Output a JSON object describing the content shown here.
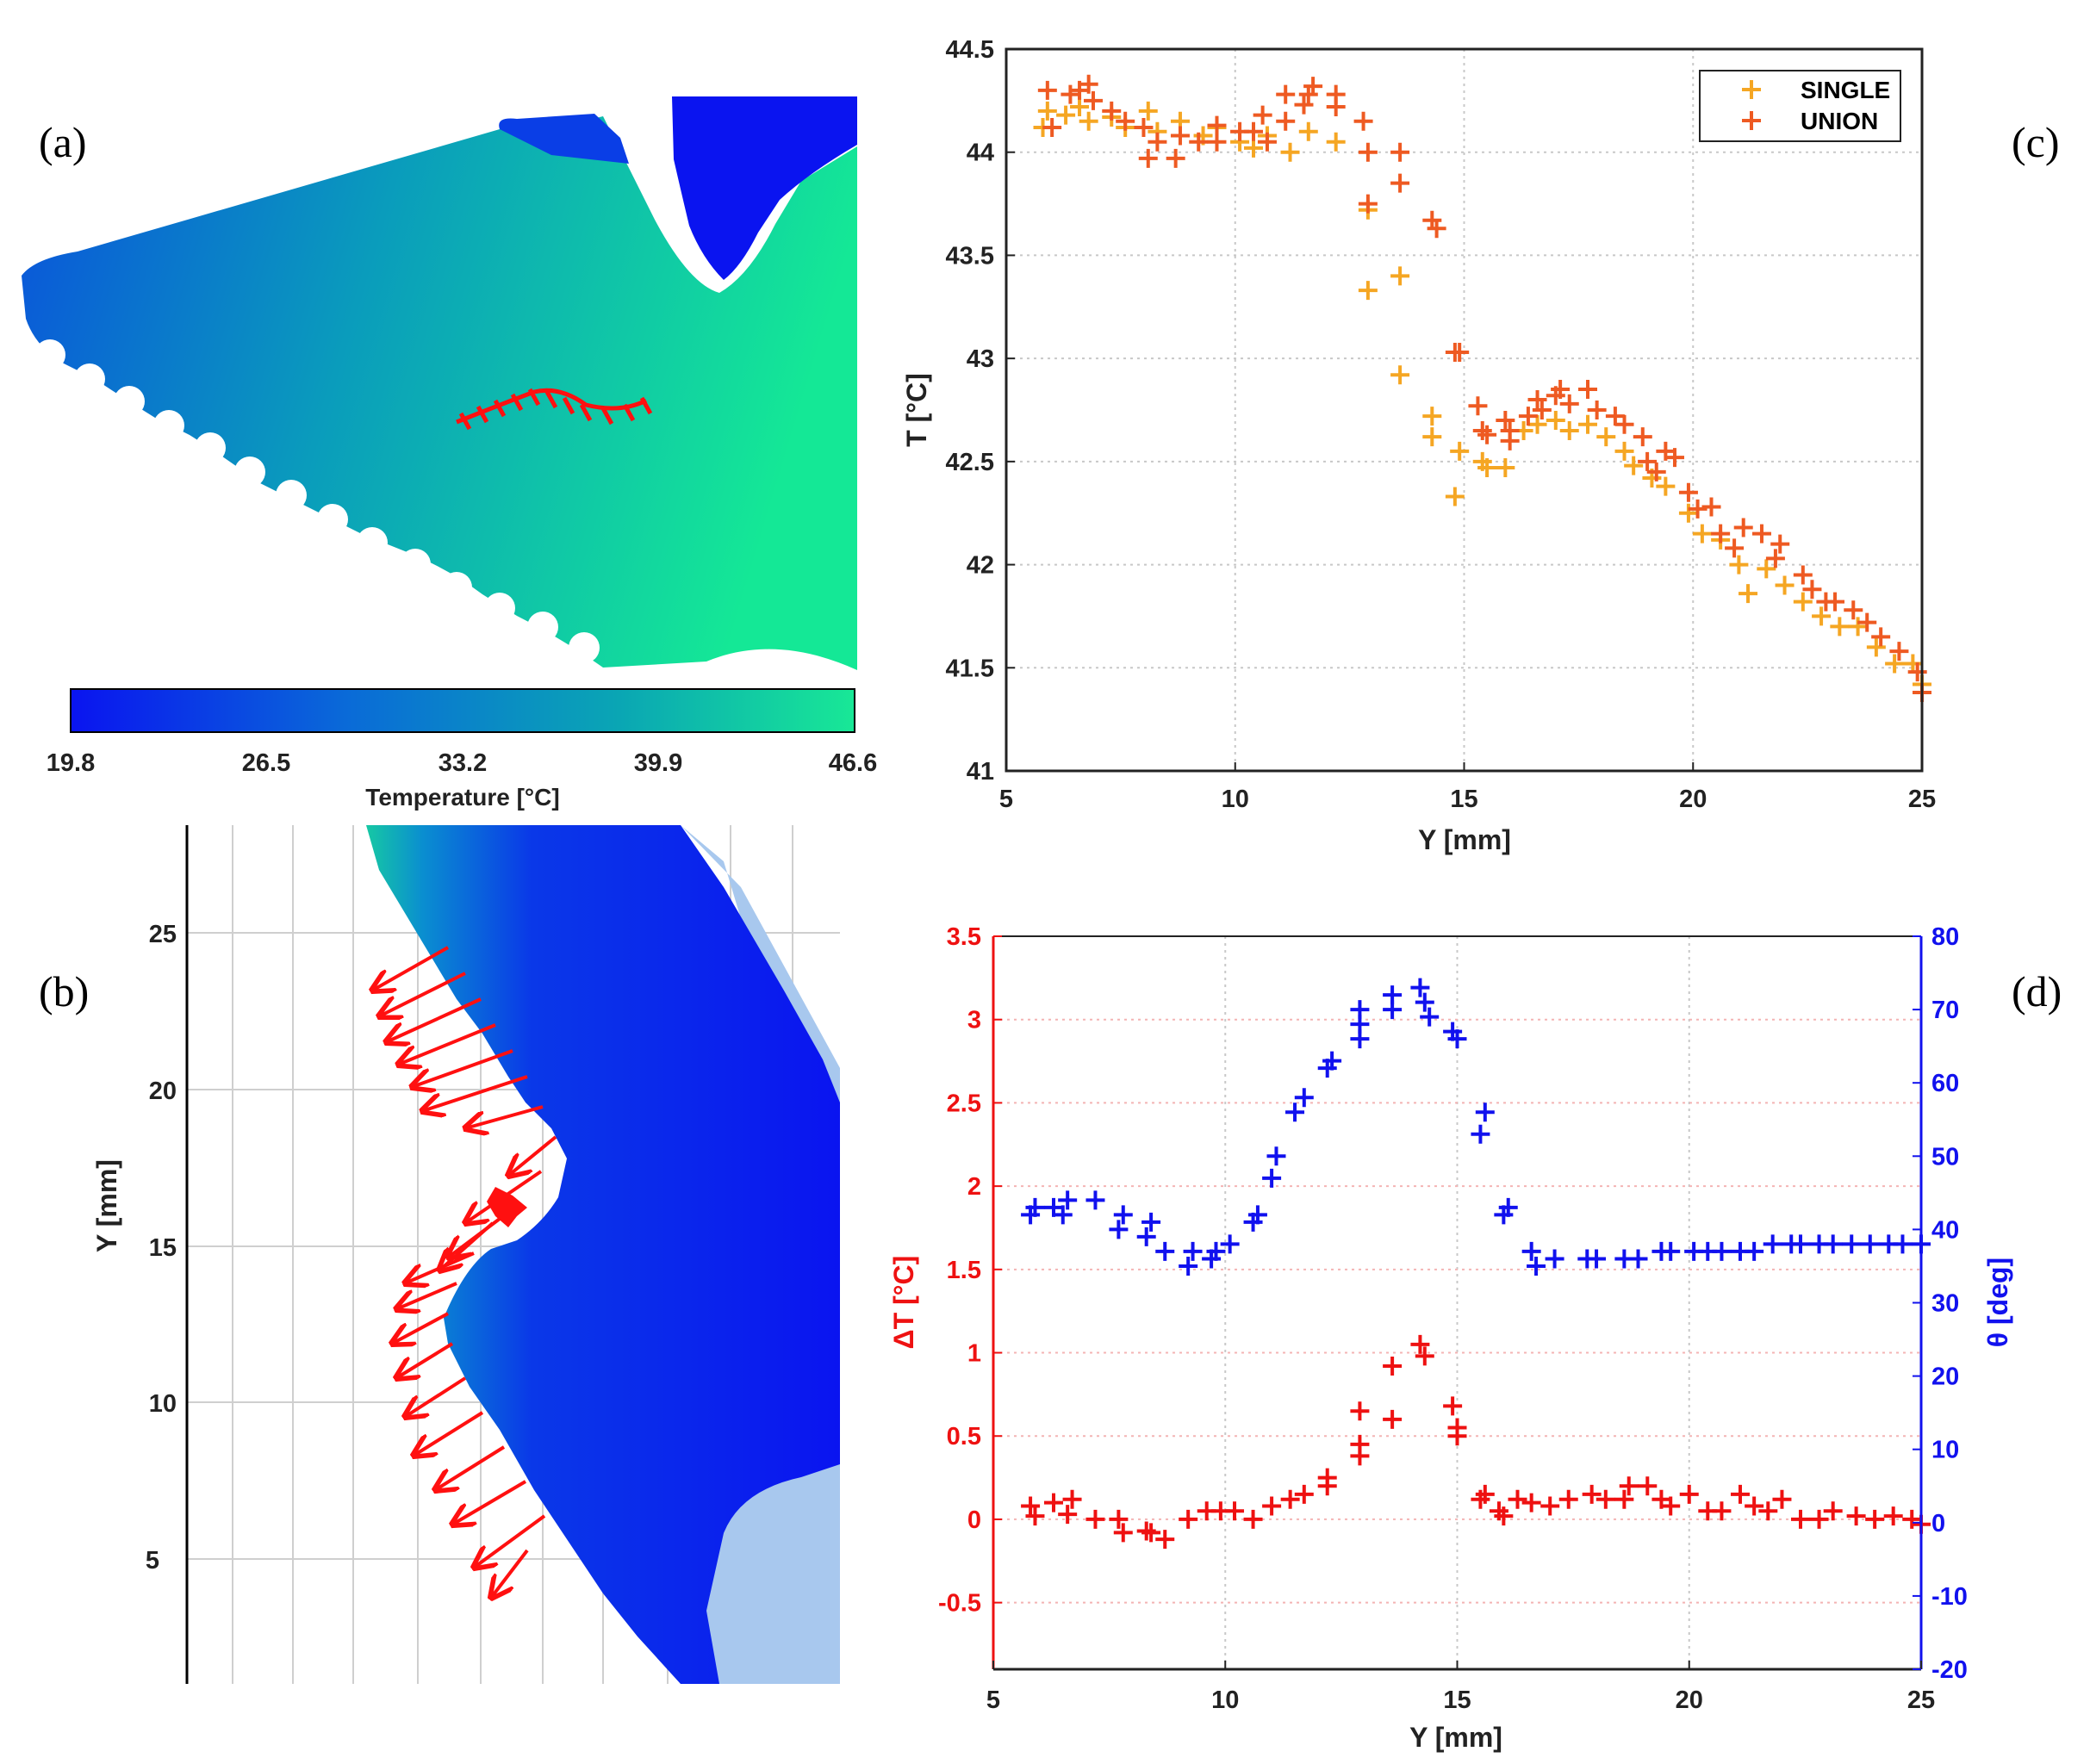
{
  "panels": {
    "a": "(a)",
    "b": "(b)",
    "c": "(c)",
    "d": "(d)"
  },
  "colorbar": {
    "label": "Temperature [°C]",
    "ticks": [
      "19.8",
      "26.5",
      "33.2",
      "39.9",
      "46.6"
    ],
    "colors": [
      "#0a14f0",
      "#0a6ad8",
      "#0aa6b4",
      "#18e896"
    ]
  },
  "panel_b_axis": {
    "ylabel": "Y [mm]",
    "ticks": [
      "5",
      "10",
      "15",
      "20",
      "25"
    ],
    "ylim": [
      1,
      28
    ],
    "arrow_color": "#ff1010"
  },
  "chart_data": [
    {
      "id": "c",
      "type": "scatter",
      "xlabel": "Y [mm]",
      "ylabel": "T [°C]",
      "xlim": [
        5,
        25
      ],
      "ylim": [
        41,
        44.5
      ],
      "xticks": [
        "5",
        "10",
        "15",
        "20",
        "25"
      ],
      "yticks": [
        "41",
        "41.5",
        "42",
        "42.5",
        "43",
        "43.5",
        "44",
        "44.5"
      ],
      "legend_position": "top-right",
      "series": [
        {
          "name": "SINGLE",
          "color": "#f5a623",
          "points": [
            [
              5.8,
              44.12
            ],
            [
              5.9,
              44.2
            ],
            [
              6.3,
              44.18
            ],
            [
              6.6,
              44.22
            ],
            [
              6.8,
              44.15
            ],
            [
              7.3,
              44.17
            ],
            [
              7.6,
              44.12
            ],
            [
              8.1,
              44.2
            ],
            [
              8.3,
              44.1
            ],
            [
              8.8,
              44.15
            ],
            [
              9.3,
              44.08
            ],
            [
              9.6,
              44.12
            ],
            [
              10.1,
              44.05
            ],
            [
              10.4,
              44.02
            ],
            [
              10.7,
              44.08
            ],
            [
              11.2,
              44.0
            ],
            [
              11.6,
              44.1
            ],
            [
              12.2,
              44.05
            ],
            [
              12.9,
              43.72
            ],
            [
              12.9,
              43.33
            ],
            [
              13.6,
              43.4
            ],
            [
              13.6,
              42.92
            ],
            [
              14.3,
              42.62
            ],
            [
              14.3,
              42.72
            ],
            [
              14.8,
              42.33
            ],
            [
              14.9,
              42.55
            ],
            [
              15.4,
              42.5
            ],
            [
              15.5,
              42.47
            ],
            [
              15.9,
              42.47
            ],
            [
              16.3,
              42.65
            ],
            [
              16.6,
              42.68
            ],
            [
              17.0,
              42.7
            ],
            [
              17.3,
              42.65
            ],
            [
              17.7,
              42.68
            ],
            [
              18.1,
              42.62
            ],
            [
              18.5,
              42.55
            ],
            [
              18.7,
              42.48
            ],
            [
              19.1,
              42.42
            ],
            [
              19.4,
              42.38
            ],
            [
              19.9,
              42.25
            ],
            [
              20.2,
              42.15
            ],
            [
              20.6,
              42.12
            ],
            [
              21.0,
              42.0
            ],
            [
              21.2,
              41.86
            ],
            [
              21.6,
              41.98
            ],
            [
              22.0,
              41.9
            ],
            [
              22.4,
              41.82
            ],
            [
              22.8,
              41.75
            ],
            [
              23.2,
              41.7
            ],
            [
              23.6,
              41.7
            ],
            [
              24.0,
              41.6
            ],
            [
              24.4,
              41.52
            ],
            [
              24.8,
              41.52
            ],
            [
              25.0,
              41.42
            ]
          ]
        },
        {
          "name": "UNION",
          "color": "#ee5a22",
          "points": [
            [
              5.9,
              44.3
            ],
            [
              6.0,
              44.12
            ],
            [
              6.4,
              44.28
            ],
            [
              6.6,
              44.3
            ],
            [
              6.8,
              44.33
            ],
            [
              6.9,
              44.25
            ],
            [
              7.3,
              44.2
            ],
            [
              7.6,
              44.15
            ],
            [
              8.0,
              44.12
            ],
            [
              8.1,
              43.97
            ],
            [
              8.3,
              44.05
            ],
            [
              8.7,
              43.97
            ],
            [
              8.8,
              44.08
            ],
            [
              9.2,
              44.05
            ],
            [
              9.6,
              44.05
            ],
            [
              9.6,
              44.13
            ],
            [
              10.1,
              44.1
            ],
            [
              10.4,
              44.1
            ],
            [
              10.6,
              44.18
            ],
            [
              10.7,
              44.05
            ],
            [
              11.1,
              44.15
            ],
            [
              11.1,
              44.28
            ],
            [
              11.5,
              44.23
            ],
            [
              11.6,
              44.28
            ],
            [
              11.7,
              44.32
            ],
            [
              12.2,
              44.28
            ],
            [
              12.2,
              44.22
            ],
            [
              12.8,
              44.15
            ],
            [
              12.9,
              44.0
            ],
            [
              12.9,
              43.75
            ],
            [
              13.6,
              44.0
            ],
            [
              13.6,
              43.85
            ],
            [
              14.3,
              43.67
            ],
            [
              14.4,
              43.63
            ],
            [
              14.8,
              43.03
            ],
            [
              14.9,
              43.03
            ],
            [
              15.3,
              42.77
            ],
            [
              15.4,
              42.65
            ],
            [
              15.5,
              42.63
            ],
            [
              15.9,
              42.7
            ],
            [
              16.0,
              42.6
            ],
            [
              16.0,
              42.65
            ],
            [
              16.4,
              42.72
            ],
            [
              16.6,
              42.8
            ],
            [
              16.7,
              42.75
            ],
            [
              17.0,
              42.82
            ],
            [
              17.1,
              42.85
            ],
            [
              17.3,
              42.78
            ],
            [
              17.7,
              42.85
            ],
            [
              17.9,
              42.75
            ],
            [
              18.3,
              42.72
            ],
            [
              18.5,
              42.68
            ],
            [
              18.9,
              42.62
            ],
            [
              19.0,
              42.5
            ],
            [
              19.2,
              42.45
            ],
            [
              19.4,
              42.55
            ],
            [
              19.6,
              42.52
            ],
            [
              19.9,
              42.35
            ],
            [
              20.1,
              42.27
            ],
            [
              20.4,
              42.28
            ],
            [
              20.6,
              42.15
            ],
            [
              20.9,
              42.08
            ],
            [
              21.1,
              42.18
            ],
            [
              21.5,
              42.15
            ],
            [
              21.8,
              42.03
            ],
            [
              21.9,
              42.1
            ],
            [
              22.4,
              41.95
            ],
            [
              22.6,
              41.88
            ],
            [
              22.9,
              41.82
            ],
            [
              23.1,
              41.82
            ],
            [
              23.5,
              41.78
            ],
            [
              23.8,
              41.72
            ],
            [
              24.1,
              41.65
            ],
            [
              24.5,
              41.58
            ],
            [
              24.9,
              41.48
            ],
            [
              25.0,
              41.38
            ]
          ]
        }
      ]
    },
    {
      "id": "d",
      "type": "scatter",
      "xlabel": "Y [mm]",
      "ylabel_left": "ΔT [°C]",
      "ylabel_right": "θ [deg]",
      "xlim": [
        5,
        25
      ],
      "ylim_left": [
        -0.9,
        3.5
      ],
      "ylim_right": [
        -20,
        80
      ],
      "xticks": [
        "5",
        "10",
        "15",
        "20",
        "25"
      ],
      "yticks_left": [
        "-0.5",
        "0",
        "0.5",
        "1",
        "1.5",
        "2",
        "2.5",
        "3",
        "3.5"
      ],
      "yticks_right": [
        "-20",
        "-10",
        "0",
        "10",
        "20",
        "30",
        "40",
        "50",
        "60",
        "70",
        "80"
      ],
      "series": [
        {
          "name": "ΔT",
          "axis": "left",
          "color": "#ee1111",
          "points": [
            [
              5.8,
              0.08
            ],
            [
              5.9,
              0.02
            ],
            [
              6.3,
              0.1
            ],
            [
              6.6,
              0.03
            ],
            [
              6.7,
              0.12
            ],
            [
              7.2,
              0.0
            ],
            [
              7.7,
              0.0
            ],
            [
              7.8,
              -0.08
            ],
            [
              8.3,
              -0.07
            ],
            [
              8.4,
              -0.08
            ],
            [
              8.7,
              -0.12
            ],
            [
              9.2,
              0.0
            ],
            [
              9.6,
              0.05
            ],
            [
              9.9,
              0.05
            ],
            [
              10.2,
              0.05
            ],
            [
              10.6,
              0.0
            ],
            [
              11.0,
              0.08
            ],
            [
              11.4,
              0.12
            ],
            [
              11.7,
              0.15
            ],
            [
              12.2,
              0.2
            ],
            [
              12.2,
              0.25
            ],
            [
              12.9,
              0.65
            ],
            [
              12.9,
              0.45
            ],
            [
              12.9,
              0.38
            ],
            [
              13.6,
              0.92
            ],
            [
              13.6,
              0.6
            ],
            [
              14.2,
              1.05
            ],
            [
              14.3,
              0.98
            ],
            [
              14.9,
              0.68
            ],
            [
              15.0,
              0.55
            ],
            [
              15.0,
              0.5
            ],
            [
              15.5,
              0.12
            ],
            [
              15.6,
              0.15
            ],
            [
              15.9,
              0.05
            ],
            [
              16.0,
              0.02
            ],
            [
              16.3,
              0.12
            ],
            [
              16.6,
              0.1
            ],
            [
              17.0,
              0.08
            ],
            [
              17.4,
              0.12
            ],
            [
              17.9,
              0.15
            ],
            [
              18.2,
              0.12
            ],
            [
              18.6,
              0.12
            ],
            [
              18.7,
              0.2
            ],
            [
              19.1,
              0.2
            ],
            [
              19.4,
              0.12
            ],
            [
              19.6,
              0.08
            ],
            [
              20.0,
              0.15
            ],
            [
              20.4,
              0.05
            ],
            [
              20.7,
              0.05
            ],
            [
              21.1,
              0.15
            ],
            [
              21.4,
              0.08
            ],
            [
              21.7,
              0.05
            ],
            [
              22.0,
              0.12
            ],
            [
              22.4,
              0.0
            ],
            [
              22.8,
              0.0
            ],
            [
              23.1,
              0.05
            ],
            [
              23.6,
              0.02
            ],
            [
              24.0,
              0.0
            ],
            [
              24.4,
              0.02
            ],
            [
              24.8,
              0.0
            ],
            [
              25.0,
              -0.03
            ]
          ]
        },
        {
          "name": "θ",
          "axis": "right",
          "color": "#1111ee",
          "points": [
            [
              5.8,
              42
            ],
            [
              5.9,
              43
            ],
            [
              6.3,
              43
            ],
            [
              6.5,
              42
            ],
            [
              6.6,
              44
            ],
            [
              7.2,
              44
            ],
            [
              7.7,
              40
            ],
            [
              7.8,
              42
            ],
            [
              8.3,
              39
            ],
            [
              8.4,
              41
            ],
            [
              8.7,
              37
            ],
            [
              9.2,
              35
            ],
            [
              9.3,
              37
            ],
            [
              9.7,
              36
            ],
            [
              9.8,
              37
            ],
            [
              10.1,
              38
            ],
            [
              10.6,
              41
            ],
            [
              10.7,
              42
            ],
            [
              11.0,
              47
            ],
            [
              11.1,
              50
            ],
            [
              11.5,
              56
            ],
            [
              11.7,
              58
            ],
            [
              12.2,
              62
            ],
            [
              12.3,
              63
            ],
            [
              12.9,
              70
            ],
            [
              12.9,
              66
            ],
            [
              12.9,
              68
            ],
            [
              13.6,
              72
            ],
            [
              13.6,
              70
            ],
            [
              14.2,
              73
            ],
            [
              14.3,
              71
            ],
            [
              14.4,
              69
            ],
            [
              14.9,
              67
            ],
            [
              15.0,
              66
            ],
            [
              15.5,
              53
            ],
            [
              15.6,
              56
            ],
            [
              16.0,
              42
            ],
            [
              16.1,
              43
            ],
            [
              16.6,
              37
            ],
            [
              16.7,
              35
            ],
            [
              17.1,
              36
            ],
            [
              17.8,
              36
            ],
            [
              18.0,
              36
            ],
            [
              18.6,
              36
            ],
            [
              18.9,
              36
            ],
            [
              19.4,
              37
            ],
            [
              19.6,
              37
            ],
            [
              20.1,
              37
            ],
            [
              20.4,
              37
            ],
            [
              20.7,
              37
            ],
            [
              21.1,
              37
            ],
            [
              21.4,
              37
            ],
            [
              21.8,
              38
            ],
            [
              22.2,
              38
            ],
            [
              22.4,
              38
            ],
            [
              22.8,
              38
            ],
            [
              23.1,
              38
            ],
            [
              23.5,
              38
            ],
            [
              23.9,
              38
            ],
            [
              24.3,
              38
            ],
            [
              24.6,
              38
            ],
            [
              25.0,
              38
            ]
          ]
        }
      ]
    }
  ]
}
